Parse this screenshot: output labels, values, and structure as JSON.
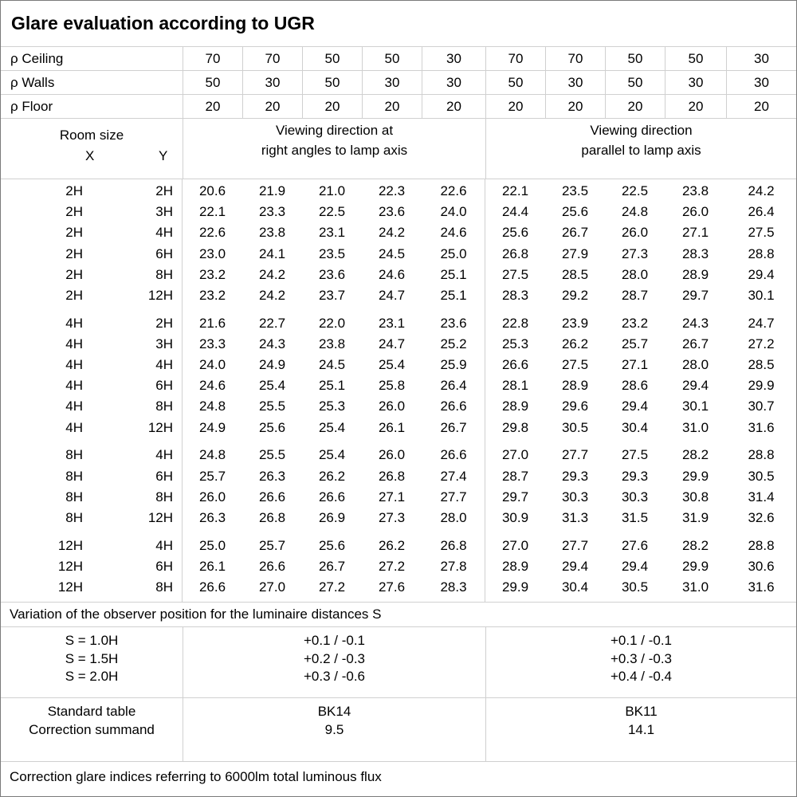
{
  "title": "Glare evaluation according to UGR",
  "reflectance_rows": [
    {
      "label": "ρ Ceiling",
      "values": [
        "70",
        "70",
        "50",
        "50",
        "30",
        "70",
        "70",
        "50",
        "50",
        "30"
      ]
    },
    {
      "label": "ρ Walls",
      "values": [
        "50",
        "30",
        "50",
        "30",
        "30",
        "50",
        "30",
        "50",
        "30",
        "30"
      ]
    },
    {
      "label": "ρ Floor",
      "values": [
        "20",
        "20",
        "20",
        "20",
        "20",
        "20",
        "20",
        "20",
        "20",
        "20"
      ]
    }
  ],
  "room_size": {
    "label": "Room size",
    "x": "X",
    "y": "Y"
  },
  "groups": [
    {
      "line1": "Viewing direction at",
      "line2": "right angles to lamp axis"
    },
    {
      "line1": "Viewing direction",
      "line2": "parallel to lamp axis"
    }
  ],
  "ugr_blocks": [
    {
      "rows": [
        {
          "x": "2H",
          "y": "2H",
          "right_angles": [
            "20.6",
            "21.9",
            "21.0",
            "22.3",
            "22.6"
          ],
          "parallel": [
            "22.1",
            "23.5",
            "22.5",
            "23.8",
            "24.2"
          ]
        },
        {
          "x": "2H",
          "y": "3H",
          "right_angles": [
            "22.1",
            "23.3",
            "22.5",
            "23.6",
            "24.0"
          ],
          "parallel": [
            "24.4",
            "25.6",
            "24.8",
            "26.0",
            "26.4"
          ]
        },
        {
          "x": "2H",
          "y": "4H",
          "right_angles": [
            "22.6",
            "23.8",
            "23.1",
            "24.2",
            "24.6"
          ],
          "parallel": [
            "25.6",
            "26.7",
            "26.0",
            "27.1",
            "27.5"
          ]
        },
        {
          "x": "2H",
          "y": "6H",
          "right_angles": [
            "23.0",
            "24.1",
            "23.5",
            "24.5",
            "25.0"
          ],
          "parallel": [
            "26.8",
            "27.9",
            "27.3",
            "28.3",
            "28.8"
          ]
        },
        {
          "x": "2H",
          "y": "8H",
          "right_angles": [
            "23.2",
            "24.2",
            "23.6",
            "24.6",
            "25.1"
          ],
          "parallel": [
            "27.5",
            "28.5",
            "28.0",
            "28.9",
            "29.4"
          ]
        },
        {
          "x": "2H",
          "y": "12H",
          "right_angles": [
            "23.2",
            "24.2",
            "23.7",
            "24.7",
            "25.1"
          ],
          "parallel": [
            "28.3",
            "29.2",
            "28.7",
            "29.7",
            "30.1"
          ]
        }
      ]
    },
    {
      "rows": [
        {
          "x": "4H",
          "y": "2H",
          "right_angles": [
            "21.6",
            "22.7",
            "22.0",
            "23.1",
            "23.6"
          ],
          "parallel": [
            "22.8",
            "23.9",
            "23.2",
            "24.3",
            "24.7"
          ]
        },
        {
          "x": "4H",
          "y": "3H",
          "right_angles": [
            "23.3",
            "24.3",
            "23.8",
            "24.7",
            "25.2"
          ],
          "parallel": [
            "25.3",
            "26.2",
            "25.7",
            "26.7",
            "27.2"
          ]
        },
        {
          "x": "4H",
          "y": "4H",
          "right_angles": [
            "24.0",
            "24.9",
            "24.5",
            "25.4",
            "25.9"
          ],
          "parallel": [
            "26.6",
            "27.5",
            "27.1",
            "28.0",
            "28.5"
          ]
        },
        {
          "x": "4H",
          "y": "6H",
          "right_angles": [
            "24.6",
            "25.4",
            "25.1",
            "25.8",
            "26.4"
          ],
          "parallel": [
            "28.1",
            "28.9",
            "28.6",
            "29.4",
            "29.9"
          ]
        },
        {
          "x": "4H",
          "y": "8H",
          "right_angles": [
            "24.8",
            "25.5",
            "25.3",
            "26.0",
            "26.6"
          ],
          "parallel": [
            "28.9",
            "29.6",
            "29.4",
            "30.1",
            "30.7"
          ]
        },
        {
          "x": "4H",
          "y": "12H",
          "right_angles": [
            "24.9",
            "25.6",
            "25.4",
            "26.1",
            "26.7"
          ],
          "parallel": [
            "29.8",
            "30.5",
            "30.4",
            "31.0",
            "31.6"
          ]
        }
      ]
    },
    {
      "rows": [
        {
          "x": "8H",
          "y": "4H",
          "right_angles": [
            "24.8",
            "25.5",
            "25.4",
            "26.0",
            "26.6"
          ],
          "parallel": [
            "27.0",
            "27.7",
            "27.5",
            "28.2",
            "28.8"
          ]
        },
        {
          "x": "8H",
          "y": "6H",
          "right_angles": [
            "25.7",
            "26.3",
            "26.2",
            "26.8",
            "27.4"
          ],
          "parallel": [
            "28.7",
            "29.3",
            "29.3",
            "29.9",
            "30.5"
          ]
        },
        {
          "x": "8H",
          "y": "8H",
          "right_angles": [
            "26.0",
            "26.6",
            "26.6",
            "27.1",
            "27.7"
          ],
          "parallel": [
            "29.7",
            "30.3",
            "30.3",
            "30.8",
            "31.4"
          ]
        },
        {
          "x": "8H",
          "y": "12H",
          "right_angles": [
            "26.3",
            "26.8",
            "26.9",
            "27.3",
            "28.0"
          ],
          "parallel": [
            "30.9",
            "31.3",
            "31.5",
            "31.9",
            "32.6"
          ]
        }
      ]
    },
    {
      "rows": [
        {
          "x": "12H",
          "y": "4H",
          "right_angles": [
            "25.0",
            "25.7",
            "25.6",
            "26.2",
            "26.8"
          ],
          "parallel": [
            "27.0",
            "27.7",
            "27.6",
            "28.2",
            "28.8"
          ]
        },
        {
          "x": "12H",
          "y": "6H",
          "right_angles": [
            "26.1",
            "26.6",
            "26.7",
            "27.2",
            "27.8"
          ],
          "parallel": [
            "28.9",
            "29.4",
            "29.4",
            "29.9",
            "30.6"
          ]
        },
        {
          "x": "12H",
          "y": "8H",
          "right_angles": [
            "26.6",
            "27.0",
            "27.2",
            "27.6",
            "28.3"
          ],
          "parallel": [
            "29.9",
            "30.4",
            "30.5",
            "31.0",
            "31.6"
          ]
        }
      ]
    }
  ],
  "variation_note": "Variation of the observer position for the luminaire distances S",
  "spacing_rows": [
    {
      "label": "S = 1.0H",
      "right_angles": "+0.1 / -0.1",
      "parallel": "+0.1 / -0.1"
    },
    {
      "label": "S = 1.5H",
      "right_angles": "+0.2 / -0.3",
      "parallel": "+0.3 / -0.3"
    },
    {
      "label": "S = 2.0H",
      "right_angles": "+0.3 / -0.6",
      "parallel": "+0.4 / -0.4"
    }
  ],
  "standard": {
    "labels": [
      "Standard table",
      "Correction summand"
    ],
    "right_angles": [
      "BK14",
      "9.5"
    ],
    "parallel": [
      "BK11",
      "14.1"
    ]
  },
  "footer_note": "Correction glare indices referring to 6000lm total luminous flux",
  "colors": {
    "background": "#ffffff",
    "text": "#000000",
    "grid_line": "#d0d0d0",
    "outer_border": "#7b7b7b"
  }
}
